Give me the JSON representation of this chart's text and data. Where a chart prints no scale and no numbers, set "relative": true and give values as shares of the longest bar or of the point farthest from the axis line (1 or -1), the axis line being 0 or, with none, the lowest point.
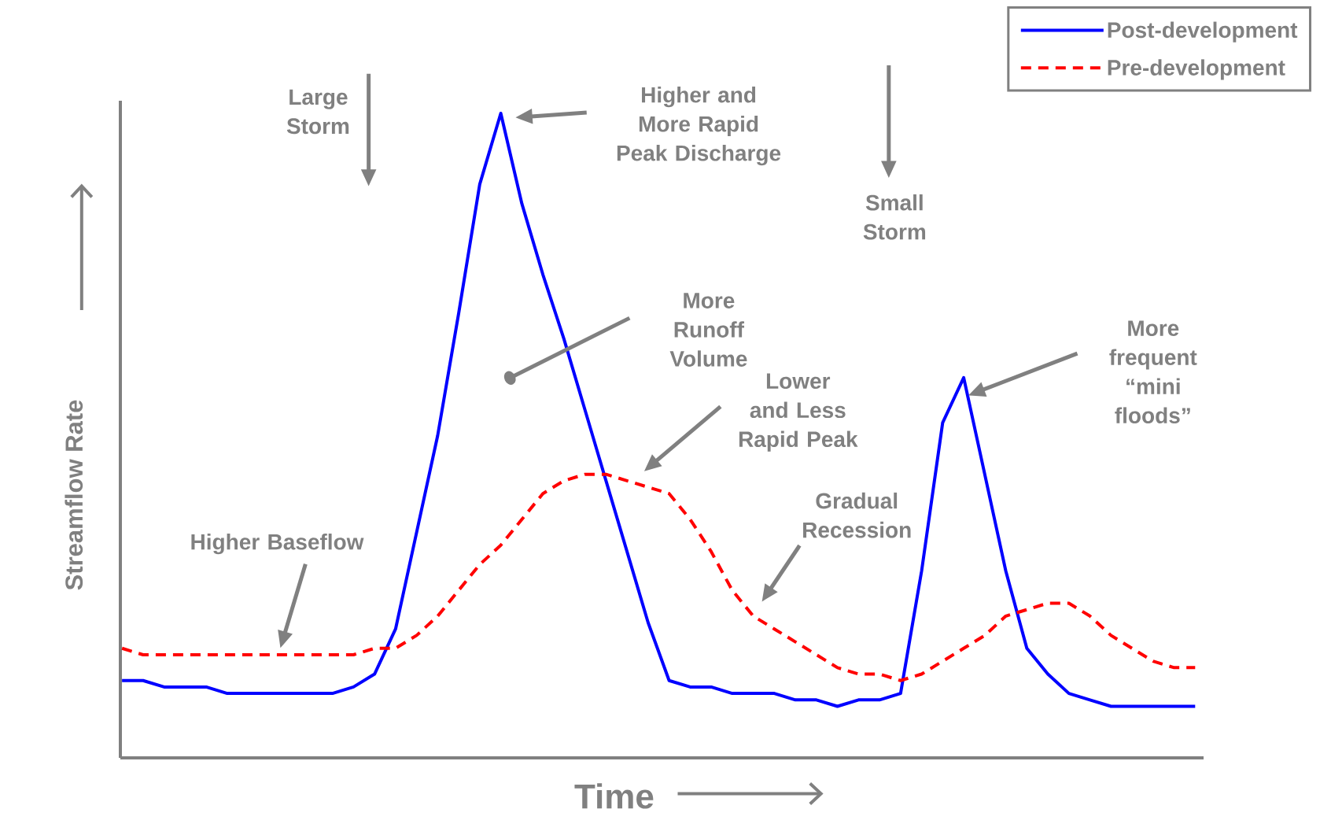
{
  "chart_data": {
    "type": "line",
    "relative": true,
    "xlabel": "Time",
    "ylabel": "Streamflow Rate",
    "legend": "top right",
    "marker": "none",
    "categories": [
      null,
      null,
      null,
      null,
      null,
      null,
      null,
      null,
      null,
      null,
      null,
      null,
      null,
      null,
      null,
      null,
      null,
      null,
      null,
      null,
      null,
      null,
      null,
      null,
      null,
      null,
      null,
      null,
      null,
      null,
      null,
      null,
      null,
      null,
      null,
      null,
      null,
      null,
      null,
      null,
      null,
      null,
      null,
      null,
      null,
      null,
      null,
      null,
      null,
      null,
      null,
      null
    ],
    "series": [
      {
        "name": "Post-development",
        "color": "#0000ff",
        "line_style": "solid",
        "values": [
          0.12,
          0.12,
          0.11,
          0.11,
          0.11,
          0.1,
          0.1,
          0.1,
          0.1,
          0.1,
          0.1,
          0.11,
          0.13,
          0.2,
          0.35,
          0.5,
          0.69,
          0.89,
          1,
          0.86,
          0.75,
          0.65,
          0.54,
          0.43,
          0.32,
          0.21,
          0.12,
          0.11,
          0.11,
          0.1,
          0.1,
          0.1,
          0.09,
          0.09,
          0.08,
          0.09,
          0.09,
          0.1,
          0.29,
          0.52,
          0.59,
          0.44,
          0.29,
          0.17,
          0.13,
          0.1,
          0.09,
          0.08,
          0.08,
          0.08,
          0.08,
          0.08
        ]
      },
      {
        "name": "Pre-development",
        "color": "#ff0000",
        "line_style": "dashed",
        "values": [
          0.17,
          0.16,
          0.16,
          0.16,
          0.16,
          0.16,
          0.16,
          0.16,
          0.16,
          0.16,
          0.16,
          0.16,
          0.17,
          0.17,
          0.19,
          0.22,
          0.26,
          0.3,
          0.33,
          0.37,
          0.41,
          0.43,
          0.44,
          0.44,
          0.43,
          0.42,
          0.41,
          0.37,
          0.32,
          0.26,
          0.22,
          0.2,
          0.18,
          0.16,
          0.14,
          0.13,
          0.13,
          0.12,
          0.13,
          0.15,
          0.17,
          0.19,
          0.22,
          0.23,
          0.24,
          0.24,
          0.22,
          0.19,
          0.17,
          0.15,
          0.14,
          0.14
        ]
      }
    ],
    "annotations": [
      "Large Storm",
      "Higher and More Rapid Peak Discharge",
      "Small Storm",
      "More Runoff Volume",
      "Lower and Less Rapid Peak",
      "More frequent “mini floods”",
      "Gradual Recession",
      "Higher Baseflow"
    ]
  }
}
